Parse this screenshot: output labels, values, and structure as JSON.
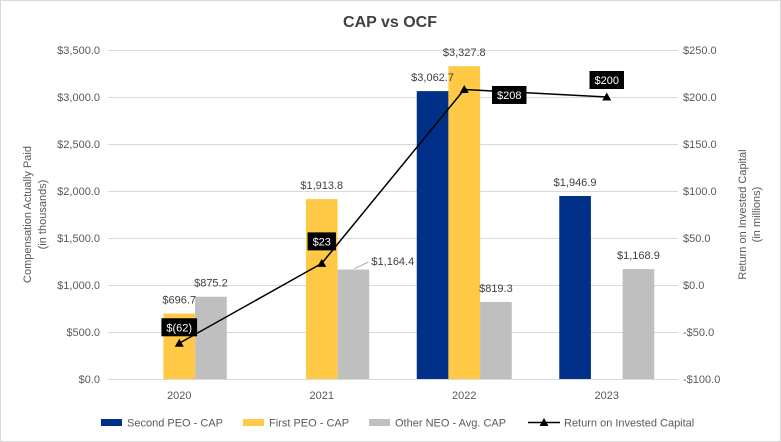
{
  "chart_data": {
    "type": "bar",
    "title": "CAP vs OCF",
    "categories": [
      "2020",
      "2021",
      "2022",
      "2023"
    ],
    "ylabel": [
      "Compensation Actually Paid",
      "(in thousands)"
    ],
    "y2label": [
      "Return on Invested Capital",
      "(in millions)"
    ],
    "ylim": [
      0,
      3500
    ],
    "y2lim": [
      -100,
      250
    ],
    "yticks": [
      0,
      500,
      1000,
      1500,
      2000,
      2500,
      3000,
      3500
    ],
    "ytick_labels": [
      "$0.0",
      "$500.0",
      "$1,000.0",
      "$1,500.0",
      "$2,000.0",
      "$2,500.0",
      "$3,000.0",
      "$3,500.0"
    ],
    "y2ticks": [
      -100,
      -50,
      0,
      50,
      100,
      150,
      200,
      250
    ],
    "y2tick_labels": [
      "-$100.0",
      "-$50.0",
      "$0.0",
      "$50.0",
      "$100.0",
      "$150.0",
      "$200.0",
      "$250.0"
    ],
    "grid": true,
    "legend": "bottom",
    "series": [
      {
        "name": "Second PEO - CAP",
        "type": "bar",
        "axis": "left",
        "color": "#003087",
        "values": [
          null,
          null,
          3062.7,
          1946.9
        ],
        "labels": [
          null,
          null,
          "$3,062.7",
          "$1,946.9"
        ]
      },
      {
        "name": "First PEO - CAP",
        "type": "bar",
        "axis": "left",
        "color": "#FFC845",
        "values": [
          696.7,
          1913.8,
          3327.8,
          null
        ],
        "labels": [
          "$696.7",
          "$1,913.8",
          "$3,327.8",
          null
        ]
      },
      {
        "name": "Other NEO - Avg. CAP",
        "type": "bar",
        "axis": "left",
        "color": "#BFBFBF",
        "values": [
          875.2,
          1164.4,
          819.3,
          1168.9
        ],
        "labels": [
          "$875.2",
          "$1,164.4",
          "$819.3",
          "$1,168.9"
        ]
      },
      {
        "name": "Return on Invested Capital",
        "type": "line",
        "axis": "right",
        "color": "#000000",
        "marker": "triangle",
        "values": [
          -62,
          23,
          208,
          200
        ],
        "labels": [
          "$(62)",
          "$23",
          "$208",
          "$200"
        ]
      }
    ]
  }
}
